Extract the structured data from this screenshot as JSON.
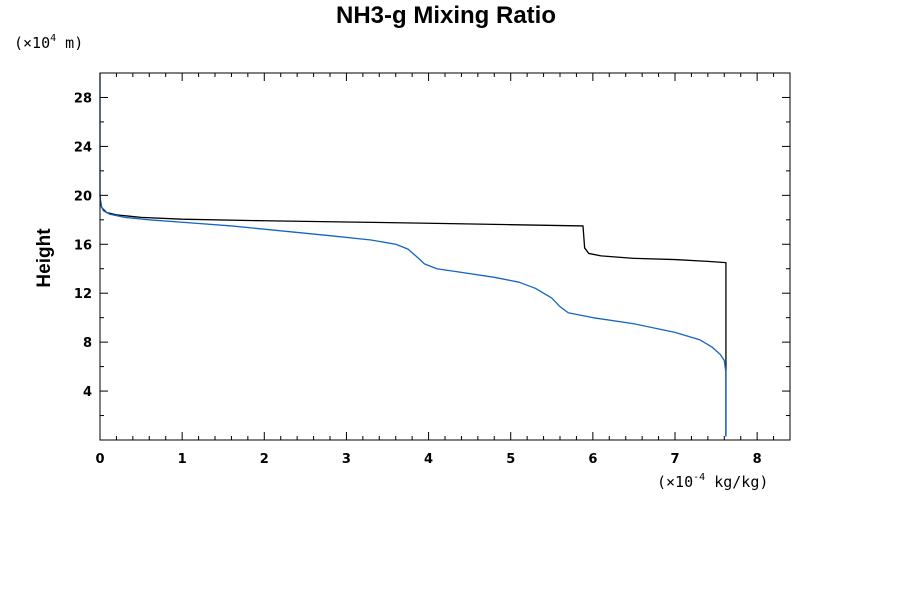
{
  "chart_data": {
    "type": "line",
    "title": "NH3-g Mixing Ratio",
    "ylabel": "Height",
    "y_unit": {
      "prefix": "(×10",
      "exponent": "4",
      "suffix": " m)"
    },
    "x_unit": {
      "prefix": "(×10",
      "exponent": "-4",
      "suffix": " kg/kg)"
    },
    "xlim": [
      0,
      8.4
    ],
    "ylim": [
      0,
      30
    ],
    "x_ticks": [
      0,
      1,
      2,
      3,
      4,
      5,
      6,
      7,
      8
    ],
    "y_ticks": [
      4,
      8,
      12,
      16,
      20,
      24,
      28
    ],
    "grid": false,
    "series": [
      {
        "color": "#000000",
        "points": [
          [
            7.62,
            0.3
          ],
          [
            7.62,
            14.5
          ],
          [
            7.4,
            14.6
          ],
          [
            7.0,
            14.75
          ],
          [
            6.5,
            14.85
          ],
          [
            6.1,
            15.05
          ],
          [
            5.95,
            15.25
          ],
          [
            5.9,
            15.7
          ],
          [
            5.88,
            17.5
          ],
          [
            5.0,
            17.6
          ],
          [
            4.0,
            17.72
          ],
          [
            3.0,
            17.82
          ],
          [
            2.0,
            17.92
          ],
          [
            1.0,
            18.05
          ],
          [
            0.5,
            18.2
          ],
          [
            0.2,
            18.4
          ],
          [
            0.08,
            18.6
          ],
          [
            0.02,
            19.0
          ],
          [
            0.005,
            19.6
          ],
          [
            0.0,
            20.0
          ]
        ]
      },
      {
        "color": "#1565c0",
        "points": [
          [
            7.62,
            0.3
          ],
          [
            7.62,
            4.0
          ],
          [
            7.62,
            5.5
          ],
          [
            7.6,
            6.5
          ],
          [
            7.55,
            7.0
          ],
          [
            7.45,
            7.6
          ],
          [
            7.3,
            8.2
          ],
          [
            7.0,
            8.8
          ],
          [
            6.5,
            9.5
          ],
          [
            6.0,
            10.0
          ],
          [
            5.7,
            10.4
          ],
          [
            5.6,
            10.9
          ],
          [
            5.5,
            11.6
          ],
          [
            5.3,
            12.4
          ],
          [
            5.1,
            12.9
          ],
          [
            4.8,
            13.3
          ],
          [
            4.4,
            13.7
          ],
          [
            4.1,
            14.0
          ],
          [
            3.95,
            14.4
          ],
          [
            3.87,
            14.9
          ],
          [
            3.75,
            15.6
          ],
          [
            3.6,
            16.0
          ],
          [
            3.3,
            16.35
          ],
          [
            2.8,
            16.7
          ],
          [
            2.2,
            17.1
          ],
          [
            1.6,
            17.5
          ],
          [
            1.0,
            17.8
          ],
          [
            0.6,
            18.0
          ],
          [
            0.3,
            18.2
          ],
          [
            0.12,
            18.45
          ],
          [
            0.04,
            18.75
          ],
          [
            0.01,
            19.2
          ],
          [
            0.0,
            20.0
          ],
          [
            0.0,
            30.0
          ]
        ]
      }
    ]
  }
}
